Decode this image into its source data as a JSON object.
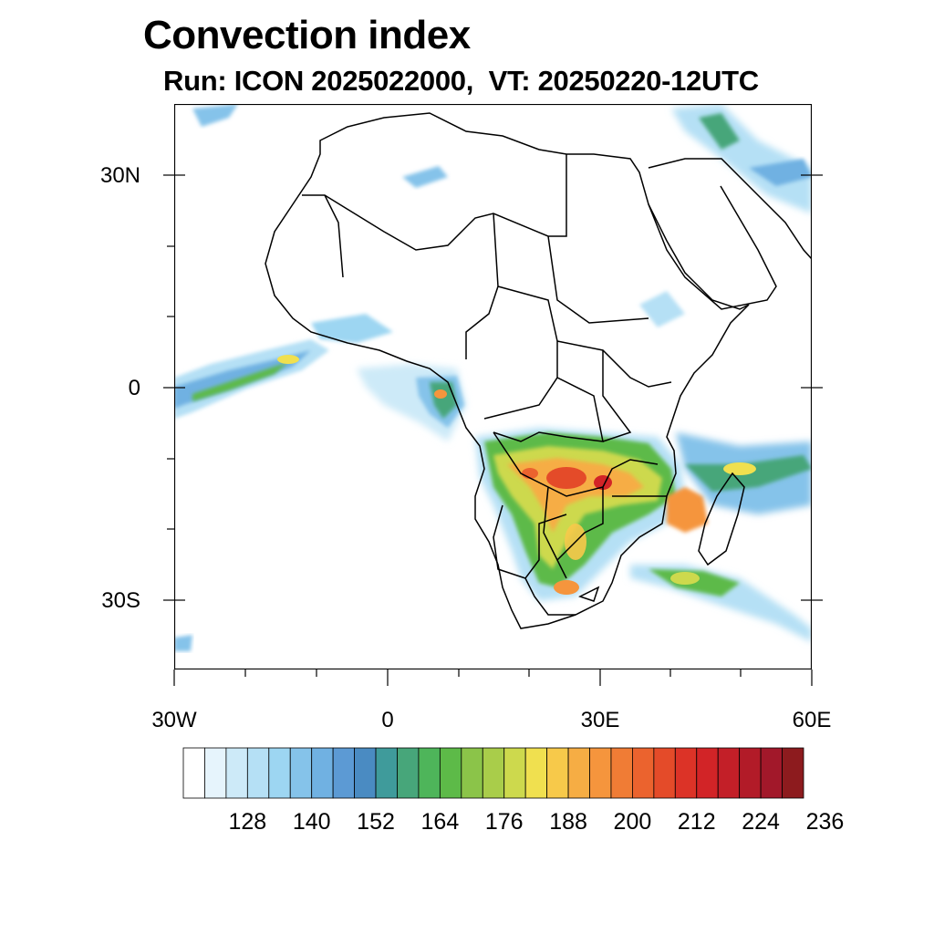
{
  "title": "Convection index",
  "subtitle": "Run: ICON 2025022000,  VT: 20250220-12UTC",
  "map": {
    "projection": "cylindrical equidistant",
    "lon_range": [
      -30,
      60
    ],
    "lat_range": [
      -40,
      40
    ],
    "y_axis": [
      {
        "lat": 30,
        "label": "30N"
      },
      {
        "lat": 0,
        "label": "0"
      },
      {
        "lat": -30,
        "label": "30S"
      }
    ],
    "x_axis": [
      {
        "lon": -30,
        "label": "30W"
      },
      {
        "lon": 0,
        "label": "0"
      },
      {
        "lon": 30,
        "label": "30E"
      },
      {
        "lon": 60,
        "label": "60E"
      }
    ]
  },
  "colorbar": {
    "colors": [
      "#ffffff",
      "#e6f4fc",
      "#cdeaf8",
      "#b5e0f5",
      "#9dd6f2",
      "#85c3ea",
      "#70b1e2",
      "#5c9ad4",
      "#4a8bc2",
      "#3f9b9b",
      "#47a67a",
      "#4eb55a",
      "#5dba48",
      "#8bc449",
      "#a9cd4a",
      "#cdd94d",
      "#f0e04f",
      "#f7c94a",
      "#f6ad44",
      "#f5953d",
      "#f07c35",
      "#eb632e",
      "#e44b29",
      "#dc3327",
      "#d22427",
      "#c31f28",
      "#b21b28",
      "#a2182a",
      "#8d1b1e"
    ],
    "labels": [
      "128",
      "140",
      "152",
      "164",
      "176",
      "188",
      "200",
      "212",
      "224",
      "236"
    ]
  }
}
